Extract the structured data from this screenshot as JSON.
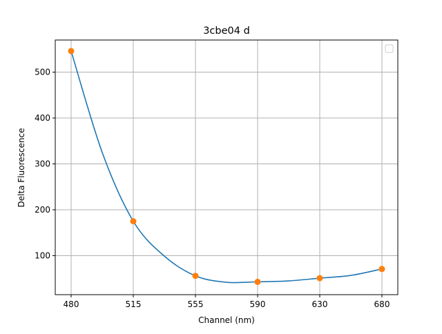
{
  "chart_data": {
    "type": "line",
    "title": "3cbe04 d",
    "xlabel": "Channel (nm)",
    "ylabel": "Delta Fluorescence",
    "categories": [
      "480",
      "515",
      "555",
      "590",
      "630",
      "680"
    ],
    "yticks": [
      100,
      200,
      300,
      400,
      500
    ],
    "ylim": [
      15,
      570
    ],
    "grid": true,
    "legend": {
      "placement": "top-right",
      "entries": []
    },
    "colors": {
      "line": "#1f77b4",
      "markers": "#ff7f0e",
      "grid": "#b0b0b0"
    },
    "series": [
      {
        "kind": "markers",
        "values": [
          546,
          175,
          56,
          43,
          51,
          71
        ]
      },
      {
        "kind": "fit-line",
        "x": [
          0,
          0.5,
          1,
          1.5,
          2,
          2.5,
          3,
          3.5,
          4,
          4.5,
          5
        ],
        "values": [
          546,
          325,
          175,
          99,
          56,
          42,
          43,
          45,
          51,
          57,
          71
        ]
      }
    ]
  }
}
